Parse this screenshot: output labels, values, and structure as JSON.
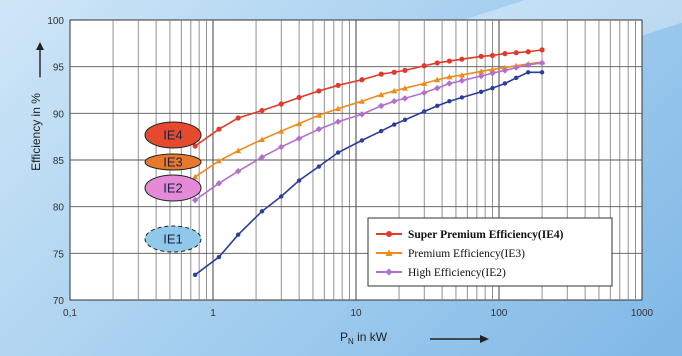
{
  "chart_data": {
    "type": "line",
    "xlabel": "P",
    "xlabel_sub": "N",
    "xlabel_rest": " in kW",
    "ylabel": "Efficiency in %",
    "xscale": "log",
    "xlim": [
      0.1,
      1000
    ],
    "ylim": [
      70,
      100
    ],
    "x_ticks": [
      "0,1",
      "1",
      "10",
      "100",
      "1000"
    ],
    "y_ticks": [
      "70",
      "75",
      "80",
      "85",
      "90",
      "95",
      "100"
    ],
    "grid": true,
    "legend_position": "bottom-right",
    "series": [
      {
        "name": "Super Premium Efficiency(IE4)",
        "color": "#e23a2a",
        "marker": "circle",
        "x": [
          0.75,
          1.1,
          1.5,
          2.2,
          3,
          4,
          5.5,
          7.5,
          11,
          15,
          18.5,
          22,
          30,
          37,
          45,
          55,
          75,
          90,
          110,
          132,
          160,
          200
        ],
        "y": [
          86.5,
          88.3,
          89.5,
          90.3,
          91,
          91.7,
          92.4,
          93,
          93.6,
          94.2,
          94.4,
          94.6,
          95.1,
          95.4,
          95.6,
          95.8,
          96.1,
          96.2,
          96.4,
          96.5,
          96.6,
          96.8
        ]
      },
      {
        "name": "Premium Efficiency(IE3)",
        "color": "#f08a1a",
        "marker": "triangle",
        "x": [
          0.75,
          1.1,
          1.5,
          2.2,
          3,
          4,
          5.5,
          7.5,
          11,
          15,
          18.5,
          22,
          30,
          37,
          45,
          55,
          75,
          90,
          110,
          132,
          160,
          200
        ],
        "y": [
          83.2,
          84.9,
          86,
          87.2,
          88.1,
          88.9,
          89.8,
          90.5,
          91.3,
          92,
          92.4,
          92.7,
          93.2,
          93.6,
          93.9,
          94.1,
          94.5,
          94.7,
          94.9,
          95.1,
          95.3,
          95.5
        ]
      },
      {
        "name": "High Efficiency(IE2)",
        "color": "#b36fd0",
        "marker": "diamond",
        "x": [
          0.75,
          1.1,
          1.5,
          2.2,
          3,
          4,
          5.5,
          7.5,
          11,
          15,
          18.5,
          22,
          30,
          37,
          45,
          55,
          75,
          90,
          110,
          132,
          160,
          200
        ],
        "y": [
          80.7,
          82.5,
          83.8,
          85.3,
          86.4,
          87.3,
          88.3,
          89.1,
          89.9,
          90.8,
          91.3,
          91.6,
          92.2,
          92.7,
          93.2,
          93.5,
          94,
          94.3,
          94.6,
          94.9,
          95.2,
          95.4
        ]
      },
      {
        "name": "",
        "color": "#2a3e9a",
        "marker": "dot",
        "x": [
          0.75,
          1.1,
          1.5,
          2.2,
          3,
          4,
          5.5,
          7.5,
          11,
          15,
          18.5,
          22,
          30,
          37,
          45,
          55,
          75,
          90,
          110,
          132,
          160,
          200
        ],
        "y": [
          72.7,
          74.6,
          77,
          79.5,
          81.1,
          82.8,
          84.3,
          85.8,
          87.1,
          88.1,
          88.8,
          89.3,
          90.2,
          90.8,
          91.3,
          91.7,
          92.3,
          92.7,
          93.2,
          93.8,
          94.4,
          94.4
        ]
      }
    ],
    "class_badges": [
      {
        "label": "IE4",
        "color": "#e64a2e"
      },
      {
        "label": "IE3",
        "color": "#e8782a"
      },
      {
        "label": "IE2",
        "color": "#e48ad6"
      },
      {
        "label": "IE1",
        "color": "#8fc8ea"
      }
    ]
  }
}
